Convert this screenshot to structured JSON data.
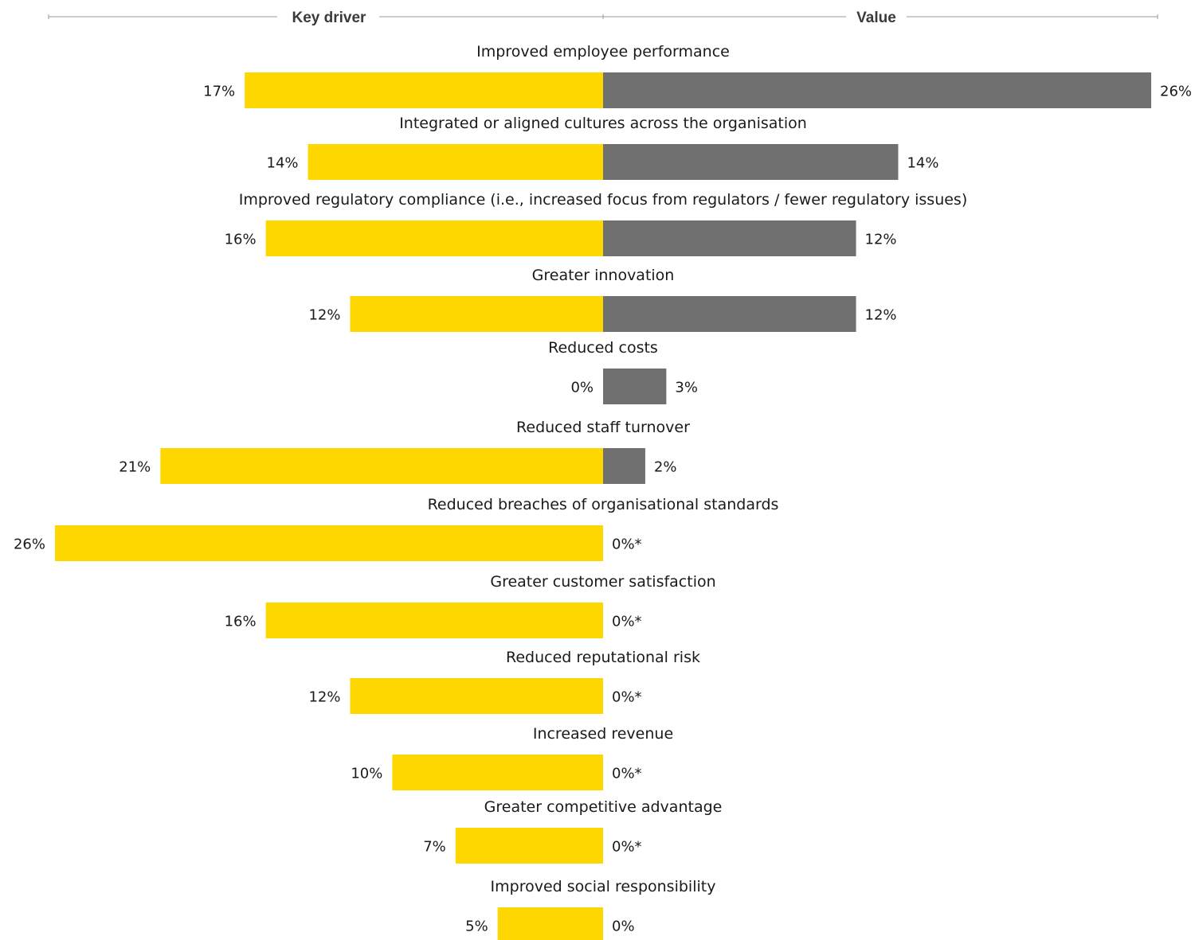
{
  "chart_data": {
    "type": "bar",
    "layout": "butterfly",
    "headers": {
      "left": "Key driver",
      "right": "Value"
    },
    "categories": [
      "Improved employee performance",
      "Integrated or aligned cultures across the organisation",
      "Improved regulatory compliance  (i.e., increased focus from regulators / fewer regulatory issues)",
      "Greater innovation",
      "Reduced costs",
      "Reduced staff turnover",
      "Reduced breaches of organisational standards",
      "Greater customer satisfaction",
      "Reduced reputational risk",
      "Increased revenue",
      "Greater competitive advantage",
      "Improved social responsibility"
    ],
    "series": [
      {
        "name": "Key driver",
        "color": "#FFD700",
        "values": [
          17,
          14,
          16,
          12,
          0,
          21,
          26,
          16,
          12,
          10,
          7,
          5
        ],
        "labels": [
          "17%",
          "14%",
          "16%",
          "12%",
          "0%",
          "21%",
          "26%",
          "16%",
          "12%",
          "10%",
          "7%",
          "5%"
        ]
      },
      {
        "name": "Value",
        "color": "#707070",
        "values": [
          26,
          14,
          12,
          12,
          3,
          2,
          0,
          0,
          0,
          0,
          0,
          0
        ],
        "labels": [
          "26%",
          "14%",
          "12%",
          "12%",
          "3%",
          "2%",
          "0%*",
          "0%*",
          "0%*",
          "0%*",
          "0%*",
          "0%"
        ]
      }
    ],
    "xlim": [
      0,
      26
    ],
    "grid": false
  }
}
